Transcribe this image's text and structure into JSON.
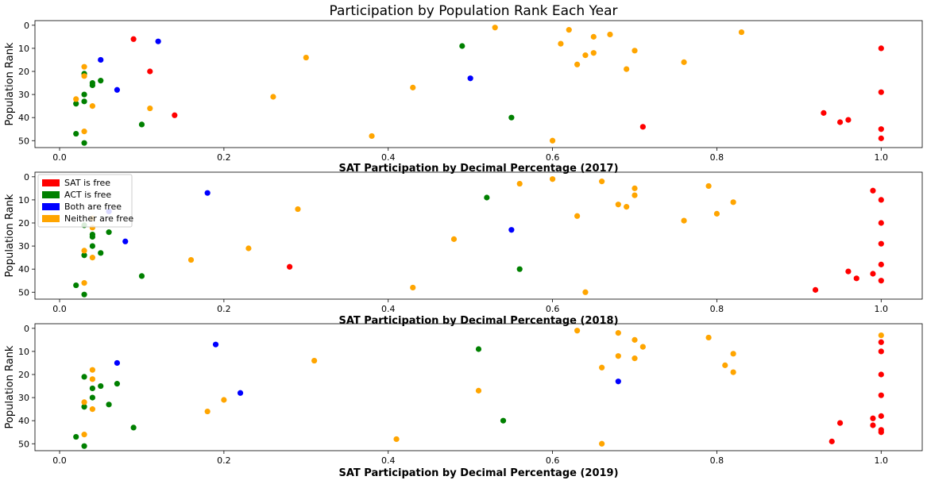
{
  "title": "Participation by Population Rank Each Year",
  "colors": {
    "SAT is free": "#ff0000",
    "ACT is free": "#008000",
    "Both are free": "#0000ff",
    "Neither are free": "#ffa500"
  },
  "chart_data": [
    {
      "type": "scatter",
      "xlabel": "SAT Participation by Decimal Percentage (2017)",
      "ylabel": "Population Rank",
      "xlim": [
        -0.03,
        1.05
      ],
      "ylim": [
        53,
        -2
      ],
      "y_inverted": true,
      "xticks": [
        "0.0",
        "0.2",
        "0.4",
        "0.6",
        "0.8",
        "1.0"
      ],
      "yticks": [
        "0",
        "10",
        "20",
        "30",
        "40",
        "50"
      ],
      "legend": null,
      "series": [
        {
          "name": "SAT is free",
          "points": [
            [
              0.09,
              6
            ],
            [
              0.11,
              20
            ],
            [
              0.14,
              39
            ],
            [
              0.71,
              44
            ],
            [
              0.93,
              38
            ],
            [
              0.95,
              42
            ],
            [
              0.96,
              41
            ],
            [
              1.0,
              10
            ],
            [
              1.0,
              29
            ],
            [
              1.0,
              45
            ],
            [
              1.0,
              49
            ]
          ]
        },
        {
          "name": "ACT is free",
          "points": [
            [
              0.03,
              21
            ],
            [
              0.04,
              25
            ],
            [
              0.04,
              26
            ],
            [
              0.05,
              24
            ],
            [
              0.03,
              30
            ],
            [
              0.03,
              33
            ],
            [
              0.02,
              34
            ],
            [
              0.1,
              43
            ],
            [
              0.02,
              47
            ],
            [
              0.03,
              51
            ],
            [
              0.49,
              9
            ],
            [
              0.55,
              40
            ]
          ]
        },
        {
          "name": "Both are free",
          "points": [
            [
              0.05,
              15
            ],
            [
              0.12,
              7
            ],
            [
              0.07,
              28
            ],
            [
              0.5,
              23
            ]
          ]
        },
        {
          "name": "Neither are free",
          "points": [
            [
              0.03,
              18
            ],
            [
              0.03,
              22
            ],
            [
              0.02,
              32
            ],
            [
              0.04,
              35
            ],
            [
              0.11,
              36
            ],
            [
              0.03,
              46
            ],
            [
              0.26,
              31
            ],
            [
              0.3,
              14
            ],
            [
              0.38,
              48
            ],
            [
              0.43,
              27
            ],
            [
              0.53,
              1
            ],
            [
              0.6,
              50
            ],
            [
              0.61,
              8
            ],
            [
              0.62,
              2
            ],
            [
              0.63,
              17
            ],
            [
              0.64,
              13
            ],
            [
              0.65,
              5
            ],
            [
              0.65,
              12
            ],
            [
              0.67,
              4
            ],
            [
              0.69,
              19
            ],
            [
              0.7,
              11
            ],
            [
              0.76,
              16
            ],
            [
              0.83,
              3
            ]
          ]
        }
      ]
    },
    {
      "type": "scatter",
      "xlabel": "SAT Participation by Decimal Percentage (2018)",
      "ylabel": "Population Rank",
      "xlim": [
        -0.03,
        1.05
      ],
      "ylim": [
        53,
        -2
      ],
      "y_inverted": true,
      "xticks": [
        "0.0",
        "0.2",
        "0.4",
        "0.6",
        "0.8",
        "1.0"
      ],
      "yticks": [
        "0",
        "10",
        "20",
        "30",
        "40",
        "50"
      ],
      "legend": "upper-left",
      "series": [
        {
          "name": "SAT is free",
          "points": [
            [
              0.28,
              39
            ],
            [
              0.92,
              49
            ],
            [
              0.96,
              41
            ],
            [
              0.97,
              44
            ],
            [
              0.99,
              42
            ],
            [
              0.99,
              6
            ],
            [
              1.0,
              10
            ],
            [
              1.0,
              20
            ],
            [
              1.0,
              29
            ],
            [
              1.0,
              38
            ],
            [
              1.0,
              45
            ]
          ]
        },
        {
          "name": "ACT is free",
          "points": [
            [
              0.03,
              21
            ],
            [
              0.04,
              25
            ],
            [
              0.04,
              26
            ],
            [
              0.06,
              24
            ],
            [
              0.04,
              30
            ],
            [
              0.05,
              33
            ],
            [
              0.03,
              34
            ],
            [
              0.1,
              43
            ],
            [
              0.02,
              47
            ],
            [
              0.03,
              51
            ],
            [
              0.52,
              9
            ],
            [
              0.56,
              40
            ]
          ]
        },
        {
          "name": "Both are free",
          "points": [
            [
              0.06,
              15
            ],
            [
              0.18,
              7
            ],
            [
              0.08,
              28
            ],
            [
              0.55,
              23
            ]
          ]
        },
        {
          "name": "Neither are free",
          "points": [
            [
              0.04,
              18
            ],
            [
              0.04,
              22
            ],
            [
              0.03,
              32
            ],
            [
              0.04,
              35
            ],
            [
              0.16,
              36
            ],
            [
              0.03,
              46
            ],
            [
              0.23,
              31
            ],
            [
              0.29,
              14
            ],
            [
              0.43,
              48
            ],
            [
              0.48,
              27
            ],
            [
              0.56,
              3
            ],
            [
              0.6,
              1
            ],
            [
              0.64,
              50
            ],
            [
              0.66,
              2
            ],
            [
              0.63,
              17
            ],
            [
              0.68,
              12
            ],
            [
              0.69,
              13
            ],
            [
              0.7,
              5
            ],
            [
              0.7,
              8
            ],
            [
              0.76,
              19
            ],
            [
              0.79,
              4
            ],
            [
              0.8,
              16
            ],
            [
              0.82,
              11
            ]
          ]
        }
      ]
    },
    {
      "type": "scatter",
      "xlabel": "SAT Participation by Decimal Percentage (2019)",
      "ylabel": "Population Rank",
      "xlim": [
        -0.03,
        1.05
      ],
      "ylim": [
        53,
        -2
      ],
      "y_inverted": true,
      "xticks": [
        "0.0",
        "0.2",
        "0.4",
        "0.6",
        "0.8",
        "1.0"
      ],
      "yticks": [
        "0",
        "10",
        "20",
        "30",
        "40",
        "50"
      ],
      "legend": null,
      "series": [
        {
          "name": "SAT is free",
          "points": [
            [
              0.94,
              49
            ],
            [
              0.95,
              41
            ],
            [
              0.99,
              39
            ],
            [
              0.99,
              42
            ],
            [
              1.0,
              6
            ],
            [
              1.0,
              10
            ],
            [
              1.0,
              20
            ],
            [
              1.0,
              29
            ],
            [
              1.0,
              38
            ],
            [
              1.0,
              44
            ],
            [
              1.0,
              45
            ]
          ]
        },
        {
          "name": "ACT is free",
          "points": [
            [
              0.03,
              21
            ],
            [
              0.04,
              26
            ],
            [
              0.05,
              25
            ],
            [
              0.07,
              24
            ],
            [
              0.04,
              30
            ],
            [
              0.06,
              33
            ],
            [
              0.03,
              34
            ],
            [
              0.09,
              43
            ],
            [
              0.02,
              47
            ],
            [
              0.03,
              51
            ],
            [
              0.51,
              9
            ],
            [
              0.54,
              40
            ]
          ]
        },
        {
          "name": "Both are free",
          "points": [
            [
              0.07,
              15
            ],
            [
              0.19,
              7
            ],
            [
              0.22,
              28
            ],
            [
              0.68,
              23
            ]
          ]
        },
        {
          "name": "Neither are free",
          "points": [
            [
              0.04,
              18
            ],
            [
              0.04,
              22
            ],
            [
              0.03,
              32
            ],
            [
              0.04,
              35
            ],
            [
              0.18,
              36
            ],
            [
              0.03,
              46
            ],
            [
              0.2,
              31
            ],
            [
              0.31,
              14
            ],
            [
              0.41,
              48
            ],
            [
              0.51,
              27
            ],
            [
              0.63,
              1
            ],
            [
              0.66,
              17
            ],
            [
              0.66,
              50
            ],
            [
              0.68,
              2
            ],
            [
              0.68,
              12
            ],
            [
              0.7,
              5
            ],
            [
              0.7,
              13
            ],
            [
              0.71,
              8
            ],
            [
              0.79,
              4
            ],
            [
              0.81,
              16
            ],
            [
              0.82,
              11
            ],
            [
              0.82,
              19
            ],
            [
              1.0,
              3
            ]
          ]
        }
      ]
    }
  ],
  "legend_entries": [
    {
      "label": "SAT is free",
      "color": "#ff0000"
    },
    {
      "label": "ACT is free",
      "color": "#008000"
    },
    {
      "label": "Both are free",
      "color": "#0000ff"
    },
    {
      "label": "Neither are free",
      "color": "#ffa500"
    }
  ]
}
